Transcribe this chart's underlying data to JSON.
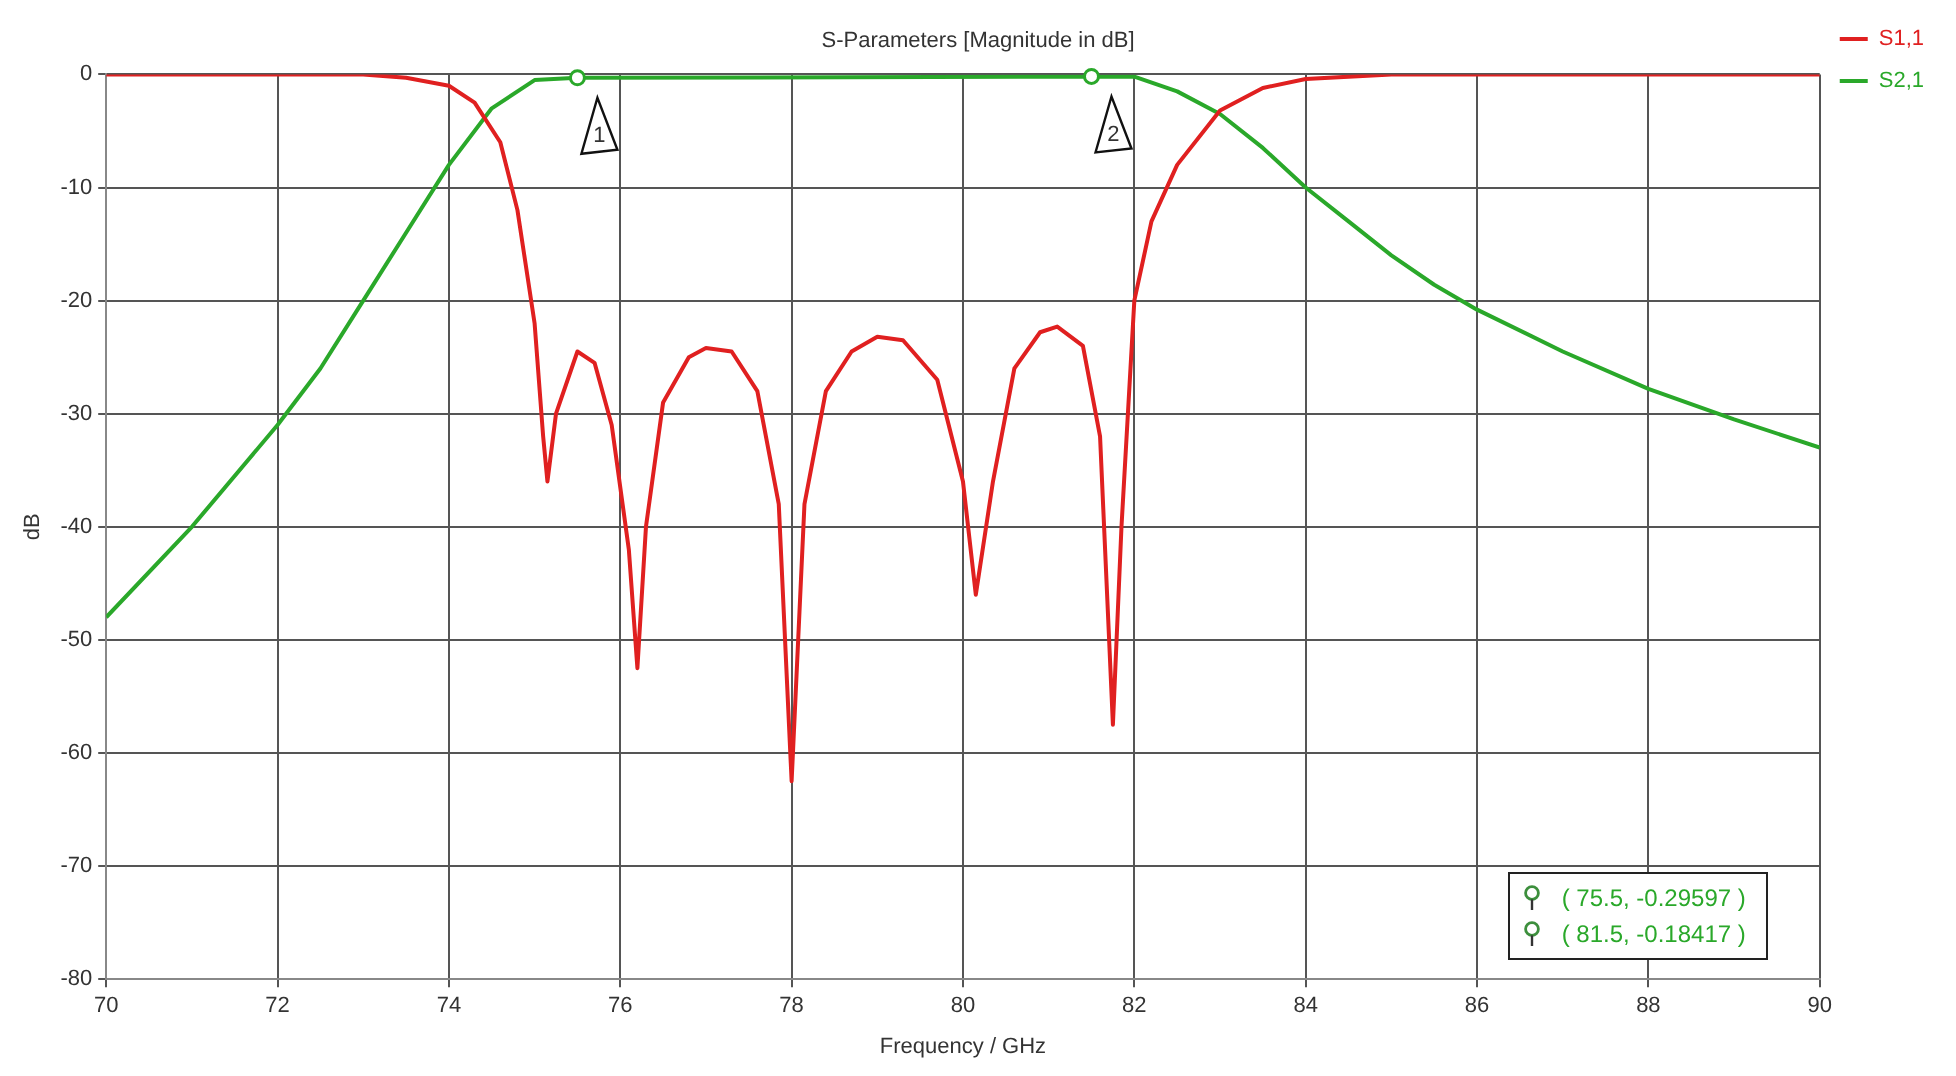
{
  "chart_data": {
    "type": "line",
    "title": "S-Parameters [Magnitude in dB]",
    "xlabel": "Frequency / GHz",
    "ylabel": "dB",
    "xlim": [
      70,
      90
    ],
    "xticks": [
      70,
      72,
      74,
      76,
      78,
      80,
      82,
      84,
      86,
      88,
      90
    ],
    "ylim": [
      -80,
      0
    ],
    "yticks": [
      -80,
      -70,
      -60,
      -50,
      -40,
      -30,
      -20,
      -10,
      0
    ],
    "grid": true,
    "legend": "top right",
    "marker": "none",
    "line_style": "solid",
    "series": [
      {
        "name": "S1,1",
        "color": "#e02020",
        "x": [
          70,
          72,
          73,
          73.5,
          74,
          74.3,
          74.6,
          74.8,
          75,
          75.1,
          75.15,
          75.25,
          75.5,
          75.7,
          75.9,
          76.1,
          76.2,
          76.3,
          76.5,
          76.8,
          77,
          77.3,
          77.6,
          77.85,
          78,
          78.15,
          78.4,
          78.7,
          79,
          79.3,
          79.7,
          80,
          80.15,
          80.35,
          80.6,
          80.9,
          81.1,
          81.4,
          81.6,
          81.75,
          81.85,
          82,
          82.2,
          82.5,
          83,
          83.5,
          84,
          85,
          90
        ],
        "values": [
          0,
          0,
          0,
          -0.3,
          -1,
          -2.5,
          -6,
          -12,
          -22,
          -32,
          -36,
          -30,
          -24.5,
          -25.5,
          -31,
          -42,
          -52.5,
          -40,
          -29,
          -25,
          -24.2,
          -24.5,
          -28,
          -38,
          -62.5,
          -38,
          -28,
          -24.5,
          -23.2,
          -23.5,
          -27,
          -36,
          -46,
          -36,
          -26,
          -22.8,
          -22.3,
          -24,
          -32,
          -57.5,
          -40,
          -20,
          -13,
          -8,
          -3.2,
          -1.2,
          -0.4,
          0,
          0
        ]
      },
      {
        "name": "S2,1",
        "color": "#2aa82a",
        "x": [
          70,
          71,
          72,
          72.5,
          73,
          73.5,
          74,
          74.5,
          75,
          75.5,
          81.5,
          82,
          82.5,
          83,
          83.5,
          84,
          84.5,
          85,
          85.5,
          86,
          87,
          88,
          89,
          90
        ],
        "values": [
          -48,
          -40,
          -31,
          -26,
          -20,
          -14,
          -8,
          -3,
          -0.5,
          -0.3,
          -0.2,
          -0.2,
          -1.5,
          -3.5,
          -6.5,
          -10,
          -13,
          -16,
          -18.6,
          -20.8,
          -24.5,
          -27.8,
          -30.5,
          -33
        ]
      }
    ],
    "annotations": [
      {
        "text": "1",
        "x": 75.5,
        "y": -0.29597
      },
      {
        "text": "2",
        "x": 81.5,
        "y": -0.18417
      },
      "( 75.5, -0.29597 )",
      "( 81.5, -0.18417 )"
    ]
  }
}
